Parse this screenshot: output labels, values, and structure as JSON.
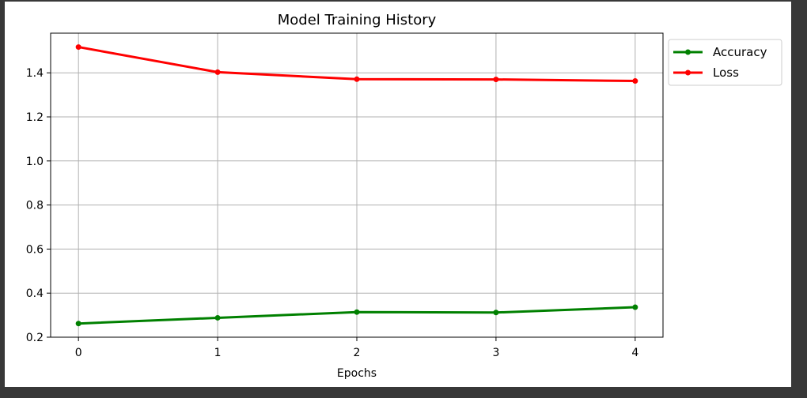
{
  "colors": {
    "background": "#383838",
    "figure": "#ffffff",
    "grid": "#b0b0b0",
    "axis": "#000000"
  },
  "chart_data": {
    "type": "line",
    "title": "Model Training History",
    "xlabel": "Epochs",
    "ylabel": "",
    "x": [
      0,
      1,
      2,
      3,
      4
    ],
    "xticks": [
      "0",
      "1",
      "2",
      "3",
      "4"
    ],
    "yticks": [
      "0.2",
      "0.4",
      "0.6",
      "0.8",
      "1.0",
      "1.2",
      "1.4"
    ],
    "ylim": [
      0.2,
      1.58
    ],
    "xlim": [
      -0.2,
      4.2
    ],
    "grid": true,
    "legend_position": "outside top-right",
    "series": [
      {
        "name": "Accuracy",
        "color": "#008000",
        "marker": "circle",
        "values": [
          0.262,
          0.288,
          0.314,
          0.312,
          0.336
        ]
      },
      {
        "name": "Loss",
        "color": "#ff0000",
        "marker": "circle",
        "values": [
          1.517,
          1.403,
          1.371,
          1.37,
          1.363
        ]
      }
    ]
  }
}
